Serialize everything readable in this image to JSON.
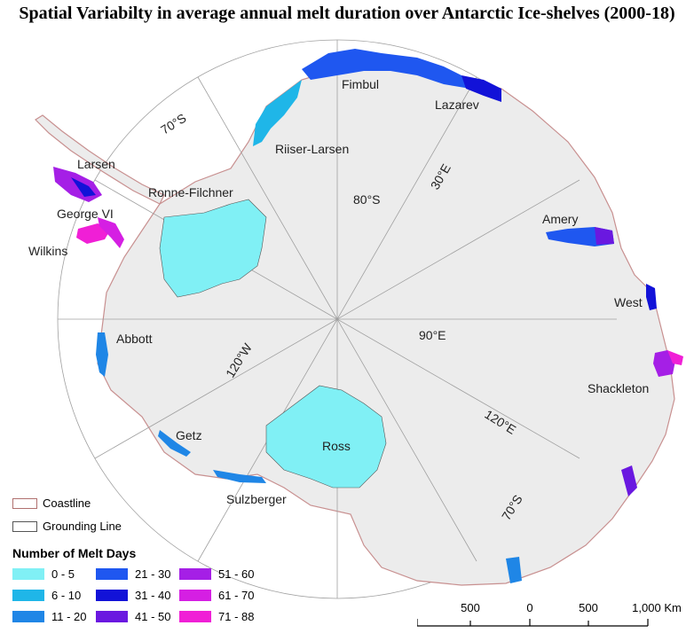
{
  "title": "Spatial Variabilty in average annual melt duration over Antarctic Ice-shelves (2000-18)",
  "graticule_labels": {
    "lat70_top": "70°S",
    "lat80": "80°S",
    "lon30": "30°E",
    "lon90": "90°E",
    "lon120e": "120°E",
    "lon120w": "120°W",
    "lat70_bottom": "70°S"
  },
  "ice_shelves": {
    "fimbul": "Fimbul",
    "lazarev": "Lazarev",
    "riiser_larsen": "Riiser-Larsen",
    "larsen": "Larsen",
    "ronne_filchner": "Ronne-Filchner",
    "george_vi": "George VI",
    "wilkins": "Wilkins",
    "amery": "Amery",
    "west": "West",
    "abbott": "Abbott",
    "shackleton": "Shackleton",
    "getz": "Getz",
    "ross": "Ross",
    "sulzberger": "Sulzberger"
  },
  "legend": {
    "coastline": "Coastline",
    "grounding_line": "Grounding Line",
    "coastline_color": "#b0706f",
    "grounding_color": "#555555",
    "melt_title": "Number of Melt Days",
    "classes": [
      {
        "label": "0 - 5",
        "color": "#80f0f5"
      },
      {
        "label": "6 - 10",
        "color": "#1fb6e8"
      },
      {
        "label": "11 - 20",
        "color": "#1f86e6"
      },
      {
        "label": "21 - 30",
        "color": "#1f57f0"
      },
      {
        "label": "31 - 40",
        "color": "#1212d8"
      },
      {
        "label": "41 - 50",
        "color": "#6a18e0"
      },
      {
        "label": "51 - 60",
        "color": "#a51fe6"
      },
      {
        "label": "61 - 70",
        "color": "#d51fe3"
      },
      {
        "label": "71 - 88",
        "color": "#f01fd6"
      }
    ]
  },
  "scale_bar": {
    "ticks": [
      "500",
      "0",
      "500",
      "1,000 Km"
    ]
  }
}
